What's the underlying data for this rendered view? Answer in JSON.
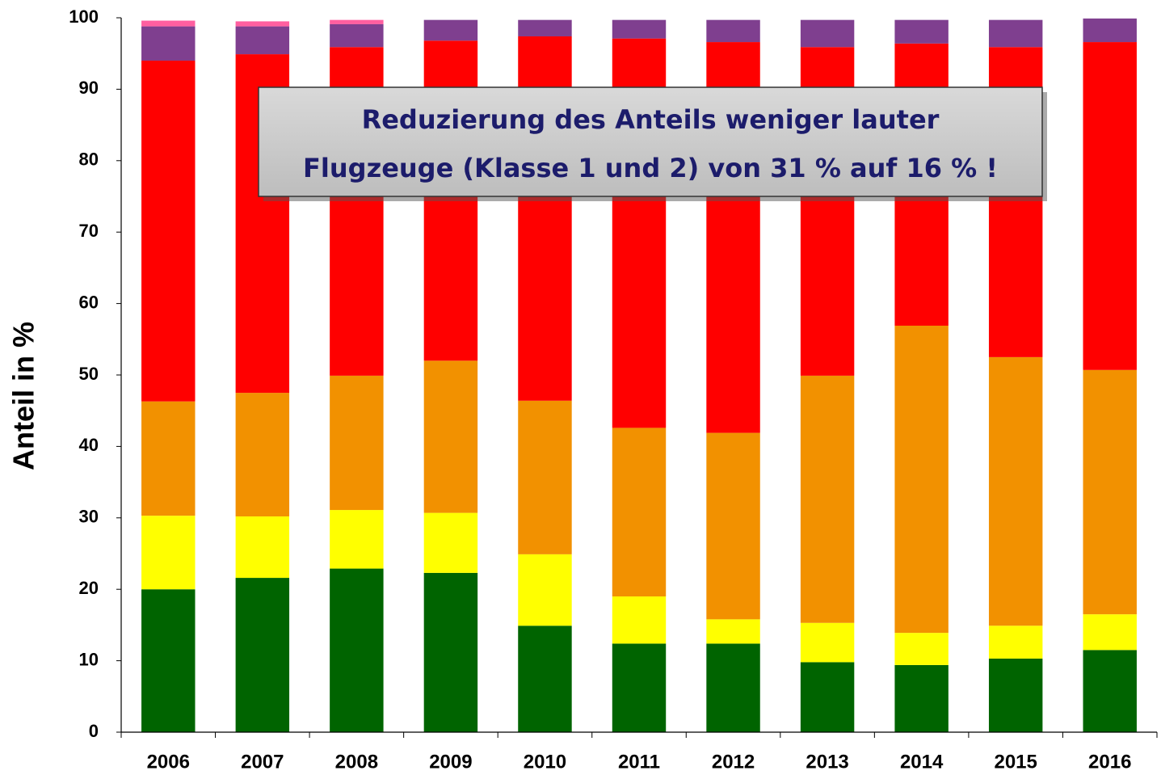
{
  "chart_data": {
    "type": "stacked_bar",
    "ylabel": "Anteil in %",
    "annotation": [
      "Reduzierung des Anteils weniger lauter",
      "Flugzeuge (Klasse 1 und 2) von 31 % auf 16 % !"
    ],
    "categories": [
      "2006",
      "2007",
      "2008",
      "2009",
      "2010",
      "2011",
      "2012",
      "2013",
      "2014",
      "2015",
      "2016"
    ],
    "series": [
      {
        "color": "#006400",
        "values": [
          20,
          21.6,
          22.9,
          22.3,
          14.9,
          12.4,
          12.4,
          9.8,
          9.4,
          10.3,
          11.5
        ]
      },
      {
        "color": "#ffff00",
        "values": [
          10.3,
          8.6,
          8.2,
          8.4,
          10,
          6.6,
          3.4,
          5.5,
          4.5,
          4.6,
          5
        ]
      },
      {
        "color": "#f29100",
        "values": [
          16,
          17.3,
          18.8,
          21.3,
          21.5,
          23.6,
          26.1,
          34.6,
          43,
          37.6,
          34.2
        ]
      },
      {
        "color": "#ff0000",
        "values": [
          47.7,
          47.4,
          46,
          44.8,
          51,
          54.5,
          54.7,
          46,
          39.5,
          43.4,
          45.9
        ]
      },
      {
        "color": "#7f3f8f",
        "values": [
          4.8,
          3.9,
          3.2,
          2.9,
          2.3,
          2.6,
          3.1,
          3.8,
          3.3,
          3.8,
          3.3
        ]
      },
      {
        "color": "#ff5fa0",
        "values": [
          0.8,
          0.7,
          0.6,
          0,
          0,
          0,
          0,
          0,
          0,
          0,
          0
        ]
      }
    ],
    "ylim": [
      0,
      100
    ],
    "yticks": [
      0,
      10,
      20,
      30,
      40,
      50,
      60,
      70,
      80,
      90,
      100
    ],
    "grid": false
  }
}
